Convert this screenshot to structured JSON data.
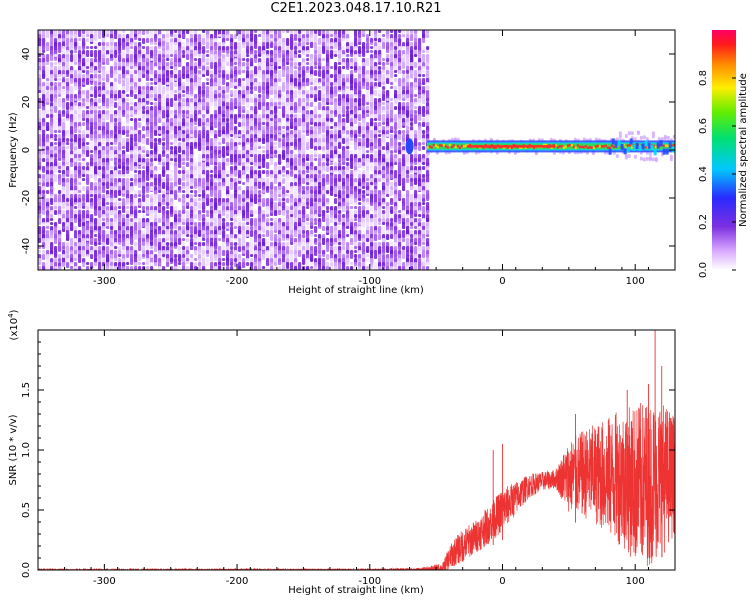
{
  "title": "C2E1.2023.048.17.10.R21",
  "colors": {
    "snr_line": "#ee3333",
    "noise_purple": "#7d2fe0",
    "trace_red": "#ff2a2a",
    "trace_green": "#37d65a",
    "trace_blue": "#2a48ff"
  },
  "chart_data": [
    {
      "type": "heatmap",
      "xlabel": "Height of straight line (km)",
      "ylabel": "Frequency (Hz)",
      "xlim": [
        -350,
        130
      ],
      "ylim": [
        -50,
        50
      ],
      "xticks": [
        -300,
        -200,
        -100,
        0,
        100
      ],
      "xtick_labels": [
        "-300",
        "-200",
        "-100",
        "0",
        "100"
      ],
      "yticks": [
        -40,
        -20,
        0,
        20,
        40
      ],
      "ytick_labels": [
        "-40",
        "-20",
        "0",
        "20",
        "40"
      ],
      "noise_region_x": [
        -350,
        -57
      ],
      "signal_trace": {
        "x_start": -57,
        "x_end": 130,
        "frequency_hz": 1.5
      },
      "colorbar": {
        "label": "Normalized spectral amplitude",
        "range": [
          0,
          1
        ],
        "ticks": [
          0.0,
          0.2,
          0.4,
          0.6,
          0.8
        ],
        "tick_labels": [
          "0.0",
          "0.2",
          "0.4",
          "0.6",
          "0.8"
        ],
        "colormap": "rainbow (white-purple-blue-cyan-green-yellow-red)"
      }
    },
    {
      "type": "line",
      "xlabel": "Height of straight line (km)",
      "ylabel": "SNR (10 * v/v)",
      "multiplier_label": "(x10",
      "multiplier_exp": "4",
      "multiplier_close": ")",
      "xlim": [
        -350,
        130
      ],
      "ylim": [
        0,
        2.0
      ],
      "xticks": [
        -300,
        -200,
        -100,
        0,
        100
      ],
      "xtick_labels": [
        "-300",
        "-200",
        "-100",
        "0",
        "100"
      ],
      "yticks": [
        0.0,
        0.5,
        1.0,
        1.5
      ],
      "ytick_labels": [
        "0.0",
        "0.5",
        "1.0",
        "1.5"
      ],
      "series": [
        {
          "name": "SNR",
          "x": [
            -350,
            -300,
            -200,
            -100,
            -60,
            -45,
            -40,
            -35,
            -30,
            -20,
            -10,
            0,
            10,
            20,
            30,
            40,
            50,
            60,
            70,
            80,
            90,
            100,
            110,
            120,
            130
          ],
          "values": [
            0.0,
            0.0,
            0.0,
            0.0,
            0.0,
            0.01,
            0.1,
            0.16,
            0.2,
            0.28,
            0.38,
            0.5,
            0.6,
            0.7,
            0.74,
            0.76,
            0.78,
            0.8,
            0.8,
            0.78,
            0.77,
            0.72,
            0.73,
            0.76,
            0.8
          ],
          "spread": [
            0.01,
            0.01,
            0.01,
            0.01,
            0.02,
            0.05,
            0.1,
            0.12,
            0.14,
            0.14,
            0.16,
            0.18,
            0.14,
            0.1,
            0.08,
            0.08,
            0.3,
            0.36,
            0.42,
            0.5,
            0.58,
            0.66,
            0.7,
            0.66,
            0.5
          ],
          "peaks": [
            {
              "x": 0,
              "y": 1.05
            },
            {
              "x": -7,
              "y": 1.0
            },
            {
              "x": 55,
              "y": 1.3
            },
            {
              "x": 94,
              "y": 1.5
            },
            {
              "x": 110,
              "y": 1.55
            },
            {
              "x": 115,
              "y": 2.0
            },
            {
              "x": 120,
              "y": 1.7
            }
          ]
        }
      ]
    }
  ]
}
